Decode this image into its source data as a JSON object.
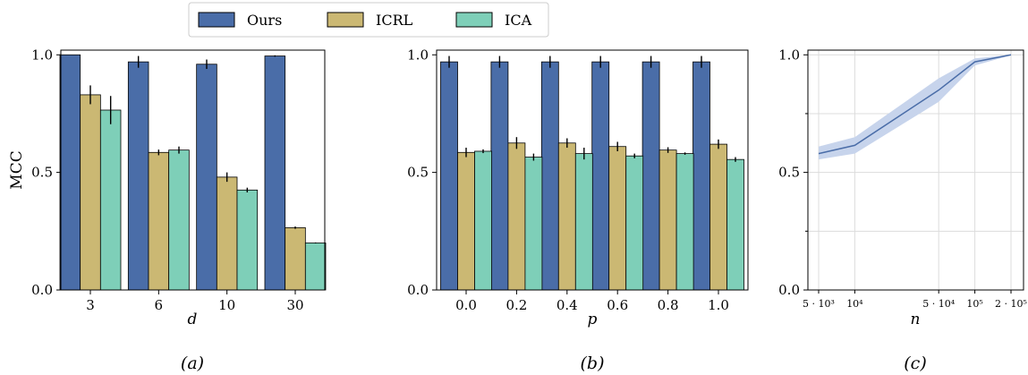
{
  "colors": {
    "Ours": "#4a6da8",
    "ICRL": "#cbb873",
    "ICA": "#7ecfb8",
    "band": "#c7d4ec",
    "line": "#4a6da8"
  },
  "legend": {
    "labels": [
      "Ours",
      "ICRL",
      "ICA"
    ]
  },
  "chart_data": [
    {
      "type": "bar",
      "caption": "(a)",
      "xlabel": "d",
      "ylabel": "MCC",
      "ylim": [
        0,
        1.02
      ],
      "yticks": [
        "0.0",
        "0.5",
        "1.0"
      ],
      "categories": [
        "3",
        "6",
        "10",
        "30"
      ],
      "series": [
        {
          "name": "Ours",
          "values": [
            1.0,
            0.97,
            0.96,
            0.995
          ],
          "errors": [
            0.0,
            0.025,
            0.02,
            0.003
          ]
        },
        {
          "name": "ICRL",
          "values": [
            0.83,
            0.585,
            0.48,
            0.265
          ],
          "errors": [
            0.04,
            0.012,
            0.02,
            0.005
          ]
        },
        {
          "name": "ICA",
          "values": [
            0.765,
            0.595,
            0.425,
            0.2
          ],
          "errors": [
            0.06,
            0.015,
            0.01,
            0.002
          ]
        }
      ]
    },
    {
      "type": "bar",
      "caption": "(b)",
      "xlabel": "p",
      "ylabel": "",
      "ylim": [
        0,
        1.02
      ],
      "yticks": [
        "0.0",
        "0.5",
        "1.0"
      ],
      "categories": [
        "0.0",
        "0.2",
        "0.4",
        "0.6",
        "0.8",
        "1.0"
      ],
      "series": [
        {
          "name": "Ours",
          "values": [
            0.97,
            0.97,
            0.97,
            0.97,
            0.97,
            0.97
          ],
          "errors": [
            0.025,
            0.025,
            0.025,
            0.025,
            0.025,
            0.025
          ]
        },
        {
          "name": "ICRL",
          "values": [
            0.585,
            0.625,
            0.625,
            0.61,
            0.595,
            0.62
          ],
          "errors": [
            0.02,
            0.025,
            0.02,
            0.02,
            0.012,
            0.02
          ]
        },
        {
          "name": "ICA",
          "values": [
            0.59,
            0.565,
            0.58,
            0.57,
            0.58,
            0.555
          ],
          "errors": [
            0.008,
            0.015,
            0.025,
            0.01,
            0.005,
            0.01
          ]
        }
      ]
    },
    {
      "type": "line",
      "caption": "(c)",
      "xlabel": "n",
      "ylabel": "",
      "xscale": "log",
      "ylim": [
        0,
        1.02
      ],
      "yticks": [
        "0.0",
        "0.5",
        "1.0"
      ],
      "xticks": [
        "5 · 10³",
        "10⁴",
        "5 · 10⁴",
        "10⁵",
        "2 · 10⁵"
      ],
      "x": [
        5000,
        10000,
        50000,
        100000,
        200000
      ],
      "series": [
        {
          "values": [
            0.58,
            0.615,
            0.85,
            0.97,
            1.0
          ],
          "lower": [
            0.555,
            0.58,
            0.8,
            0.955,
            0.998
          ],
          "upper": [
            0.61,
            0.65,
            0.9,
            0.985,
            1.0
          ]
        }
      ],
      "grid": true
    }
  ]
}
